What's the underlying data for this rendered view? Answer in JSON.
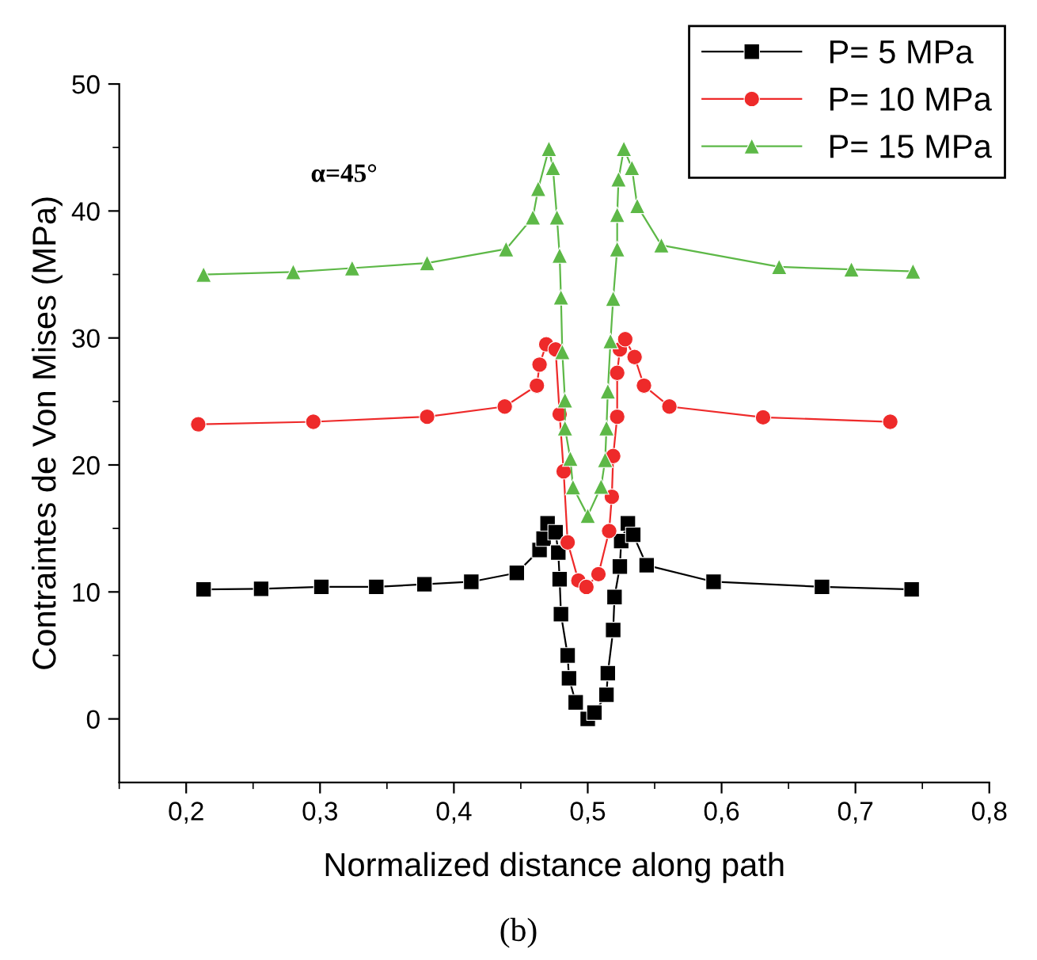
{
  "chart_data": {
    "type": "line",
    "xlabel": "Normalized distance along path",
    "ylabel": "Contraintes de Von Mises (MPa)",
    "annotations": [
      "α=45°",
      "(b)"
    ],
    "xlim": [
      0.15,
      0.8
    ],
    "ylim": [
      -5,
      50
    ],
    "xticks": [
      {
        "value": 0.15,
        "label": null
      },
      {
        "value": 0.2,
        "label": "0,2"
      },
      {
        "value": 0.25,
        "label": null
      },
      {
        "value": 0.3,
        "label": "0,3"
      },
      {
        "value": 0.35,
        "label": null
      },
      {
        "value": 0.4,
        "label": "0,4"
      },
      {
        "value": 0.45,
        "label": null
      },
      {
        "value": 0.5,
        "label": "0,5"
      },
      {
        "value": 0.55,
        "label": null
      },
      {
        "value": 0.6,
        "label": "0,6"
      },
      {
        "value": 0.65,
        "label": null
      },
      {
        "value": 0.7,
        "label": "0,7"
      },
      {
        "value": 0.75,
        "label": null
      },
      {
        "value": 0.8,
        "label": "0,8"
      }
    ],
    "yticks": [
      0,
      {
        "value": 5,
        "label": null
      },
      10,
      {
        "value": 15,
        "label": null
      },
      20,
      {
        "value": 25,
        "label": null
      },
      30,
      {
        "value": 35,
        "label": null
      },
      40,
      {
        "value": 45,
        "label": null
      },
      50
    ],
    "grid": false,
    "legend": "top right",
    "line_style": "solid",
    "series": [
      {
        "name": "P= 5 MPa",
        "color": "#000000",
        "marker": "square",
        "x": [
          0.213,
          0.256,
          0.301,
          0.342,
          0.378,
          0.413,
          0.447,
          0.464,
          0.467,
          0.47,
          0.476,
          0.478,
          0.479,
          0.48,
          0.485,
          0.486,
          0.491,
          0.5,
          0.505,
          0.514,
          0.515,
          0.519,
          0.52,
          0.524,
          0.525,
          0.53,
          0.534,
          0.544,
          0.594,
          0.675,
          0.742
        ],
        "values": [
          10.2,
          10.25,
          10.4,
          10.4,
          10.6,
          10.8,
          11.5,
          13.3,
          14.2,
          15.4,
          14.7,
          13.1,
          11.0,
          8.25,
          5.0,
          3.2,
          1.3,
          0,
          0.5,
          1.9,
          3.6,
          7.0,
          9.6,
          12.0,
          14.0,
          15.4,
          14.5,
          12.1,
          10.8,
          10.4,
          10.2
        ]
      },
      {
        "name": "P= 10 MPa",
        "color": "#ee2a2a",
        "marker": "circle",
        "x": [
          0.209,
          0.295,
          0.38,
          0.438,
          0.462,
          0.464,
          0.469,
          0.476,
          0.479,
          0.482,
          0.485,
          0.493,
          0.499,
          0.508,
          0.516,
          0.518,
          0.519,
          0.522,
          0.522,
          0.524,
          0.528,
          0.535,
          0.542,
          0.561,
          0.631,
          0.726
        ],
        "values": [
          23.2,
          23.4,
          23.8,
          24.6,
          26.25,
          27.9,
          29.5,
          29.1,
          24.0,
          19.5,
          13.9,
          10.9,
          10.4,
          11.4,
          14.8,
          17.5,
          20.7,
          23.8,
          27.25,
          29.1,
          29.9,
          28.5,
          26.25,
          24.6,
          23.75,
          23.4
        ]
      },
      {
        "name": "P= 15 MPa",
        "color": "#5db847",
        "marker": "triangle",
        "x": [
          0.213,
          0.28,
          0.324,
          0.38,
          0.439,
          0.459,
          0.463,
          0.471,
          0.474,
          0.477,
          0.479,
          0.48,
          0.481,
          0.483,
          0.483,
          0.487,
          0.489,
          0.5,
          0.51,
          0.513,
          0.514,
          0.515,
          0.517,
          0.519,
          0.522,
          0.522,
          0.523,
          0.527,
          0.533,
          0.537,
          0.555,
          0.643,
          0.697,
          0.743
        ],
        "values": [
          35.0,
          35.2,
          35.5,
          35.9,
          37.0,
          39.5,
          41.75,
          44.9,
          43.4,
          39.5,
          36.5,
          33.2,
          28.9,
          25.1,
          22.9,
          20.5,
          18.25,
          16.0,
          18.3,
          20.4,
          22.9,
          25.8,
          29.75,
          33.1,
          37.0,
          39.7,
          42.5,
          44.9,
          43.4,
          40.4,
          37.3,
          35.6,
          35.4,
          35.25
        ]
      }
    ]
  }
}
